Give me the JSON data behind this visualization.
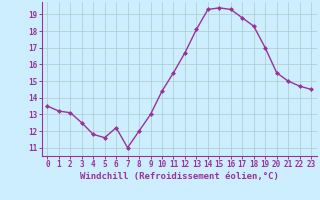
{
  "x": [
    0,
    1,
    2,
    3,
    4,
    5,
    6,
    7,
    8,
    9,
    10,
    11,
    12,
    13,
    14,
    15,
    16,
    17,
    18,
    19,
    20,
    21,
    22,
    23
  ],
  "y": [
    13.5,
    13.2,
    13.1,
    12.5,
    11.8,
    11.6,
    12.2,
    11.0,
    12.0,
    13.0,
    14.4,
    15.5,
    16.7,
    18.1,
    19.3,
    19.4,
    19.3,
    18.8,
    18.3,
    17.0,
    15.5,
    15.0,
    14.7,
    14.5
  ],
  "line_color": "#993399",
  "marker": "D",
  "marker_size": 2.0,
  "line_width": 1.0,
  "bg_color": "#cceeff",
  "grid_color": "#aacccc",
  "xlim": [
    -0.5,
    23.5
  ],
  "ylim": [
    10.5,
    19.75
  ],
  "yticks": [
    11,
    12,
    13,
    14,
    15,
    16,
    17,
    18,
    19
  ],
  "xticks": [
    0,
    1,
    2,
    3,
    4,
    5,
    6,
    7,
    8,
    9,
    10,
    11,
    12,
    13,
    14,
    15,
    16,
    17,
    18,
    19,
    20,
    21,
    22,
    23
  ],
  "xlabel": "Windchill (Refroidissement éolien,°C)",
  "xlabel_fontsize": 6.5,
  "tick_fontsize": 5.5,
  "tick_color": "#993399",
  "label_color": "#993399",
  "axis_color": "#993399",
  "spine_color": "#993399"
}
